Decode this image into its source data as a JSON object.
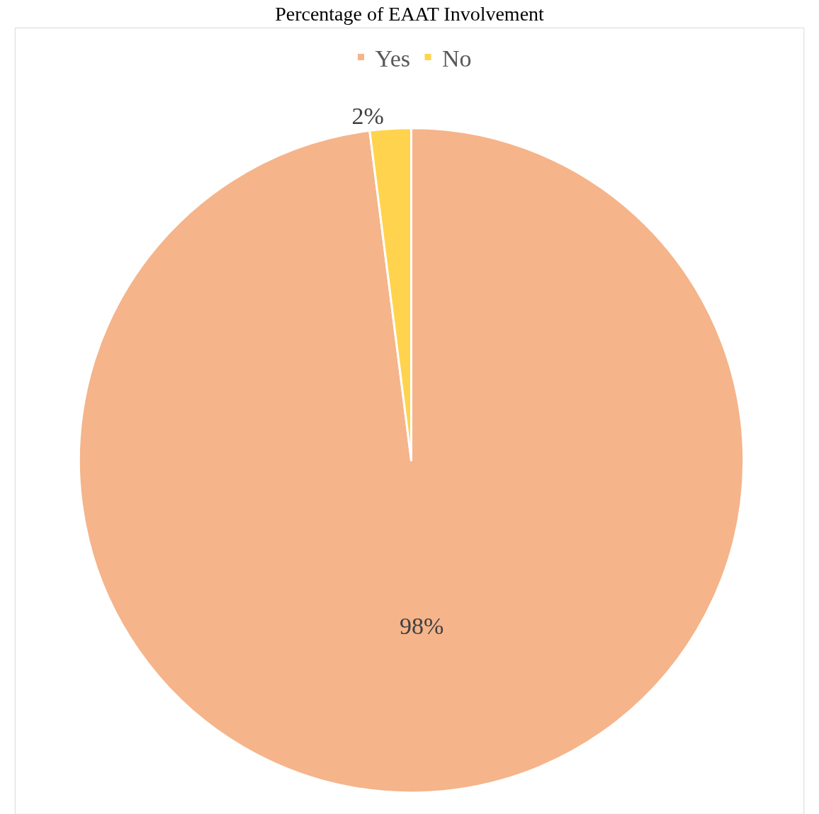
{
  "chart_data": {
    "type": "pie",
    "title": "Percentage of EAAT Involvement",
    "categories": [
      "Yes",
      "No"
    ],
    "values": [
      98,
      2
    ],
    "colors": [
      "#f5b48a",
      "#ffd34d"
    ],
    "value_labels": [
      "98%",
      "2%"
    ],
    "legend": "top"
  }
}
